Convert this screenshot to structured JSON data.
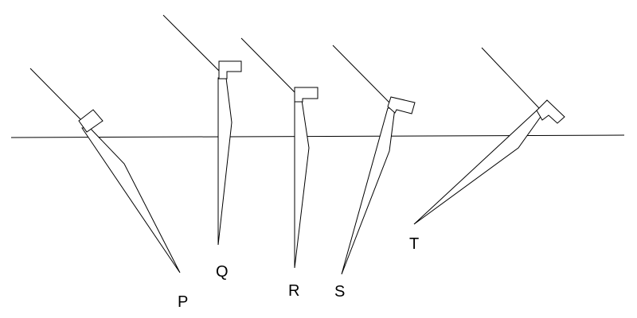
{
  "figure": {
    "labels": {
      "P": "P",
      "Q": "Q",
      "R": "R",
      "S": "S",
      "T": "T"
    },
    "colors": {
      "line": "#000000",
      "background": "#ffffff"
    }
  }
}
